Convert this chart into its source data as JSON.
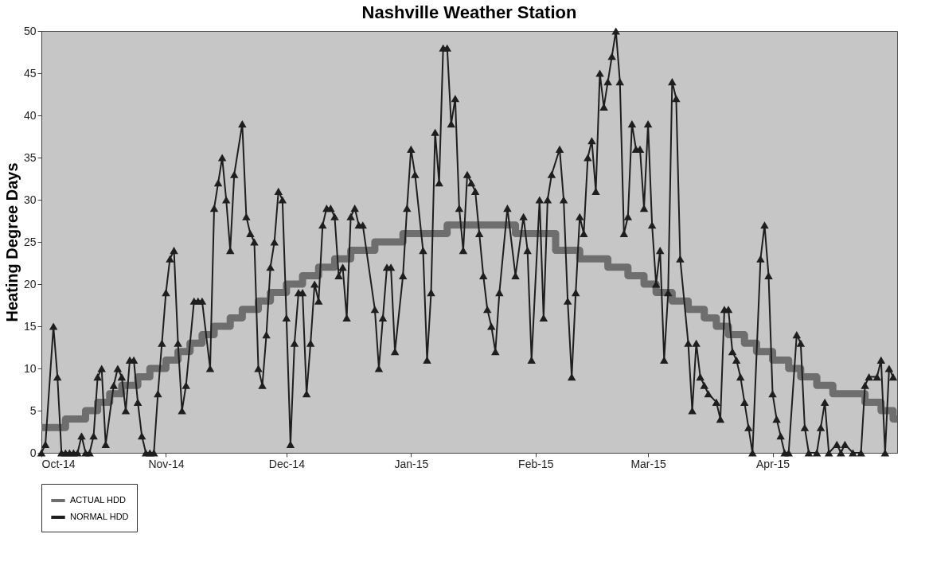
{
  "chart_data": {
    "type": "line",
    "title": "Nashville Weather Station",
    "ylabel": "Heating Degree Days",
    "xlim": [
      "2014-10-01",
      "2015-05-02"
    ],
    "ylim": [
      0,
      50
    ],
    "yticks": [
      0,
      5,
      10,
      15,
      20,
      25,
      30,
      35,
      40,
      45,
      50
    ],
    "xticks": [
      {
        "value": "2014-10-01",
        "label": "Oct-14"
      },
      {
        "value": "2014-11-01",
        "label": "Nov-14"
      },
      {
        "value": "2014-12-01",
        "label": "Dec-14"
      },
      {
        "value": "2015-01-01",
        "label": "Jan-15"
      },
      {
        "value": "2015-02-01",
        "label": "Feb-15"
      },
      {
        "value": "2015-03-01",
        "label": "Mar-15"
      },
      {
        "value": "2015-04-01",
        "label": "Apr-15"
      }
    ],
    "grid": false,
    "legend": "bottom",
    "series": [
      {
        "name": "ACTUAL HDD",
        "type": "step",
        "color": "#6e6e6e",
        "marker": "none",
        "x": [
          "2014-10-01",
          "2014-10-07",
          "2014-10-12",
          "2014-10-15",
          "2014-10-18",
          "2014-10-21",
          "2014-10-25",
          "2014-10-28",
          "2014-11-01",
          "2014-11-04",
          "2014-11-07",
          "2014-11-10",
          "2014-11-13",
          "2014-11-17",
          "2014-11-20",
          "2014-11-24",
          "2014-11-27",
          "2014-12-01",
          "2014-12-05",
          "2014-12-09",
          "2014-12-13",
          "2014-12-17",
          "2014-12-23",
          "2014-12-30",
          "2015-01-10",
          "2015-01-27",
          "2015-02-06",
          "2015-02-12",
          "2015-02-19",
          "2015-02-24",
          "2015-02-28",
          "2015-03-03",
          "2015-03-07",
          "2015-03-11",
          "2015-03-15",
          "2015-03-18",
          "2015-03-21",
          "2015-03-25",
          "2015-03-28",
          "2015-04-01",
          "2015-04-05",
          "2015-04-08",
          "2015-04-12",
          "2015-04-16",
          "2015-04-24",
          "2015-04-28",
          "2015-05-01",
          "2015-05-02"
        ],
        "values": [
          3,
          4,
          5,
          6,
          7,
          8,
          9,
          10,
          11,
          12,
          13,
          14,
          15,
          16,
          17,
          18,
          19,
          20,
          21,
          22,
          23,
          24,
          25,
          26,
          27,
          26,
          24,
          23,
          22,
          21,
          20,
          19,
          18,
          17,
          16,
          15,
          14,
          13,
          12,
          11,
          10,
          9,
          8,
          7,
          6,
          5,
          4,
          4
        ]
      },
      {
        "name": "NORMAL HDD",
        "type": "line",
        "color": "#1e1e1e",
        "marker": "triangle",
        "x": [
          "2014-10-01",
          "2014-10-02",
          "2014-10-04",
          "2014-10-05",
          "2014-10-06",
          "2014-10-07",
          "2014-10-08",
          "2014-10-09",
          "2014-10-10",
          "2014-10-11",
          "2014-10-12",
          "2014-10-13",
          "2014-10-14",
          "2014-10-15",
          "2014-10-16",
          "2014-10-17",
          "2014-10-19",
          "2014-10-20",
          "2014-10-21",
          "2014-10-22",
          "2014-10-23",
          "2014-10-24",
          "2014-10-25",
          "2014-10-26",
          "2014-10-27",
          "2014-10-28",
          "2014-10-29",
          "2014-10-30",
          "2014-10-31",
          "2014-11-01",
          "2014-11-02",
          "2014-11-03",
          "2014-11-04",
          "2014-11-05",
          "2014-11-06",
          "2014-11-08",
          "2014-11-09",
          "2014-11-10",
          "2014-11-12",
          "2014-11-13",
          "2014-11-14",
          "2014-11-15",
          "2014-11-16",
          "2014-11-17",
          "2014-11-18",
          "2014-11-20",
          "2014-11-21",
          "2014-11-22",
          "2014-11-23",
          "2014-11-24",
          "2014-11-25",
          "2014-11-26",
          "2014-11-27",
          "2014-11-28",
          "2014-11-29",
          "2014-11-30",
          "2014-12-01",
          "2014-12-02",
          "2014-12-03",
          "2014-12-04",
          "2014-12-05",
          "2014-12-06",
          "2014-12-07",
          "2014-12-08",
          "2014-12-09",
          "2014-12-10",
          "2014-12-11",
          "2014-12-12",
          "2014-12-13",
          "2014-12-14",
          "2014-12-15",
          "2014-12-16",
          "2014-12-17",
          "2014-12-18",
          "2014-12-19",
          "2014-12-20",
          "2014-12-23",
          "2014-12-24",
          "2014-12-25",
          "2014-12-26",
          "2014-12-27",
          "2014-12-28",
          "2014-12-30",
          "2014-12-31",
          "2015-01-01",
          "2015-01-02",
          "2015-01-04",
          "2015-01-05",
          "2015-01-06",
          "2015-01-07",
          "2015-01-08",
          "2015-01-09",
          "2015-01-10",
          "2015-01-11",
          "2015-01-12",
          "2015-01-13",
          "2015-01-14",
          "2015-01-15",
          "2015-01-16",
          "2015-01-17",
          "2015-01-18",
          "2015-01-19",
          "2015-01-20",
          "2015-01-21",
          "2015-01-22",
          "2015-01-23",
          "2015-01-25",
          "2015-01-27",
          "2015-01-29",
          "2015-01-30",
          "2015-01-31",
          "2015-02-02",
          "2015-02-03",
          "2015-02-04",
          "2015-02-05",
          "2015-02-07",
          "2015-02-08",
          "2015-02-09",
          "2015-02-10",
          "2015-02-11",
          "2015-02-12",
          "2015-02-13",
          "2015-02-14",
          "2015-02-15",
          "2015-02-16",
          "2015-02-17",
          "2015-02-18",
          "2015-02-19",
          "2015-02-20",
          "2015-02-21",
          "2015-02-22",
          "2015-02-23",
          "2015-02-24",
          "2015-02-25",
          "2015-02-26",
          "2015-02-27",
          "2015-02-28",
          "2015-03-01",
          "2015-03-02",
          "2015-03-03",
          "2015-03-04",
          "2015-03-05",
          "2015-03-06",
          "2015-03-07",
          "2015-03-08",
          "2015-03-09",
          "2015-03-11",
          "2015-03-12",
          "2015-03-13",
          "2015-03-14",
          "2015-03-15",
          "2015-03-16",
          "2015-03-18",
          "2015-03-19",
          "2015-03-20",
          "2015-03-21",
          "2015-03-22",
          "2015-03-23",
          "2015-03-24",
          "2015-03-25",
          "2015-03-26",
          "2015-03-27",
          "2015-03-29",
          "2015-03-30",
          "2015-03-31",
          "2015-04-01",
          "2015-04-02",
          "2015-04-03",
          "2015-04-04",
          "2015-04-05",
          "2015-04-07",
          "2015-04-08",
          "2015-04-09",
          "2015-04-10",
          "2015-04-12",
          "2015-04-13",
          "2015-04-14",
          "2015-04-15",
          "2015-04-17",
          "2015-04-18",
          "2015-04-19",
          "2015-04-21",
          "2015-04-23",
          "2015-04-24",
          "2015-04-25",
          "2015-04-27",
          "2015-04-28",
          "2015-04-29",
          "2015-04-30",
          "2015-05-01"
        ],
        "values": [
          0,
          1,
          15,
          9,
          0,
          0,
          0,
          0,
          0,
          2,
          0,
          0,
          2,
          9,
          10,
          1,
          8,
          10,
          9,
          5,
          11,
          11,
          6,
          2,
          0,
          0,
          0,
          7,
          13,
          19,
          23,
          24,
          13,
          5,
          8,
          18,
          18,
          18,
          10,
          29,
          32,
          35,
          30,
          24,
          33,
          39,
          28,
          26,
          25,
          10,
          8,
          14,
          22,
          25,
          31,
          30,
          16,
          1,
          13,
          19,
          19,
          7,
          13,
          20,
          18,
          27,
          29,
          29,
          28,
          21,
          22,
          16,
          28,
          29,
          27,
          27,
          17,
          10,
          16,
          22,
          22,
          12,
          21,
          29,
          36,
          33,
          24,
          11,
          19,
          38,
          32,
          48,
          48,
          39,
          42,
          29,
          24,
          33,
          32,
          31,
          26,
          21,
          17,
          15,
          12,
          19,
          29,
          21,
          28,
          24,
          11,
          30,
          16,
          30,
          33,
          36,
          30,
          18,
          9,
          19,
          28,
          26,
          35,
          37,
          31,
          45,
          41,
          44,
          47,
          50,
          44,
          26,
          28,
          39,
          36,
          36,
          29,
          39,
          27,
          20,
          24,
          11,
          19,
          44,
          42,
          23,
          13,
          5,
          13,
          9,
          8,
          7,
          6,
          4,
          17,
          17,
          12,
          11,
          9,
          6,
          3,
          0,
          23,
          27,
          21,
          7,
          4,
          2,
          0,
          0,
          14,
          13,
          3,
          0,
          0,
          3,
          6,
          0,
          1,
          0,
          1,
          0,
          0,
          8,
          9,
          9,
          11,
          0,
          10,
          9
        ]
      }
    ]
  }
}
